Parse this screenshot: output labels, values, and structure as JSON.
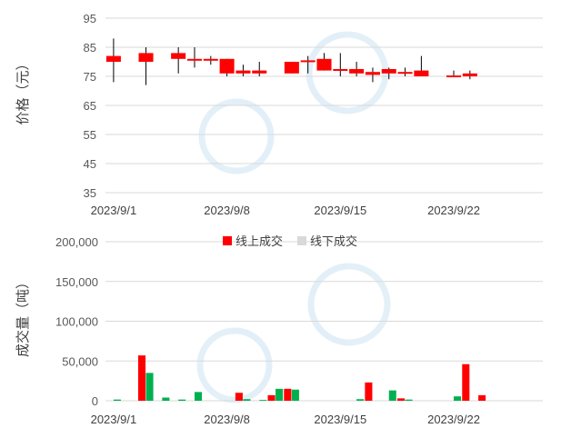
{
  "chart_data": [
    {
      "type": "candlestick",
      "ylabel": "价格（元）",
      "ylim": [
        35,
        95
      ],
      "yticks": [
        "95",
        "85",
        "75",
        "65",
        "55",
        "45",
        "35"
      ],
      "ytick_values": [
        95,
        85,
        75,
        65,
        55,
        45,
        35
      ],
      "xticks": [
        "2023/9/1",
        "2023/9/8",
        "2023/9/15",
        "2023/9/22"
      ],
      "xtick_index": [
        0,
        7,
        14,
        21
      ],
      "n_slots": 27,
      "rising_color": "#ff0000",
      "falling_color": "#00b050",
      "grid": true,
      "candles": [
        {
          "slot": 0,
          "open": 80,
          "close": 82,
          "high": 88,
          "low": 73
        },
        {
          "slot": 2,
          "open": 80,
          "close": 83,
          "high": 85,
          "low": 72
        },
        {
          "slot": 4,
          "open": 81,
          "close": 83,
          "high": 85,
          "low": 76
        },
        {
          "slot": 5,
          "open": 80.5,
          "close": 81,
          "high": 85,
          "low": 78
        },
        {
          "slot": 6,
          "open": 80.5,
          "close": 81,
          "high": 82,
          "low": 79
        },
        {
          "slot": 7,
          "open": 76,
          "close": 81,
          "high": 81,
          "low": 75
        },
        {
          "slot": 8,
          "open": 76,
          "close": 77,
          "high": 79,
          "low": 75
        },
        {
          "slot": 9,
          "open": 76,
          "close": 77,
          "high": 80,
          "low": 75
        },
        {
          "slot": 11,
          "open": 76,
          "close": 80,
          "high": 80,
          "low": 76
        },
        {
          "slot": 12,
          "open": 80,
          "close": 80.5,
          "high": 82,
          "low": 76
        },
        {
          "slot": 13,
          "open": 77,
          "close": 81,
          "high": 83,
          "low": 77
        },
        {
          "slot": 14,
          "open": 77,
          "close": 77.5,
          "high": 83,
          "low": 75
        },
        {
          "slot": 15,
          "open": 76,
          "close": 77.5,
          "high": 80,
          "low": 75
        },
        {
          "slot": 16,
          "open": 75.5,
          "close": 76.5,
          "high": 78,
          "low": 73
        },
        {
          "slot": 17,
          "open": 76,
          "close": 77.5,
          "high": 78,
          "low": 74
        },
        {
          "slot": 18,
          "open": 76,
          "close": 76.5,
          "high": 78,
          "low": 75
        },
        {
          "slot": 19,
          "open": 75,
          "close": 77,
          "high": 82,
          "low": 75
        },
        {
          "slot": 21,
          "open": 75,
          "close": 75.3,
          "high": 77,
          "low": 75
        },
        {
          "slot": 22,
          "open": 75,
          "close": 76,
          "high": 77,
          "low": 74
        }
      ]
    },
    {
      "type": "bar",
      "ylabel": "成交量（吨）",
      "ylim": [
        0,
        200000
      ],
      "yticks": [
        "200,000",
        "150,000",
        "100,000",
        "50,000",
        "0"
      ],
      "ytick_values": [
        200000,
        150000,
        100000,
        50000,
        0
      ],
      "xticks": [
        "2023/9/1",
        "2023/9/8",
        "2023/9/15",
        "2023/9/22"
      ],
      "xtick_index": [
        0,
        7,
        14,
        21
      ],
      "n_slots": 27,
      "legend_position": "top",
      "grid": true,
      "series": [
        {
          "name": "线上成交",
          "color": "#ff0000",
          "values": [
            0,
            0,
            57000,
            0,
            0,
            0,
            0,
            0,
            10000,
            0,
            7000,
            15000,
            0,
            0,
            0,
            0,
            23000,
            0,
            3000,
            0,
            0,
            0,
            46000,
            7000,
            0,
            0,
            0
          ]
        },
        {
          "name": "线下成交",
          "color": "#00b050",
          "values": [
            1500,
            0,
            35000,
            4000,
            1500,
            11000,
            0,
            0,
            2000,
            1000,
            15000,
            14000,
            0,
            0,
            0,
            2000,
            0,
            13000,
            1500,
            0,
            0,
            5500,
            0,
            0,
            0,
            0,
            0
          ]
        }
      ],
      "legend_swatch_colors": [
        "#ff0000",
        "#d9d9d9"
      ]
    }
  ]
}
